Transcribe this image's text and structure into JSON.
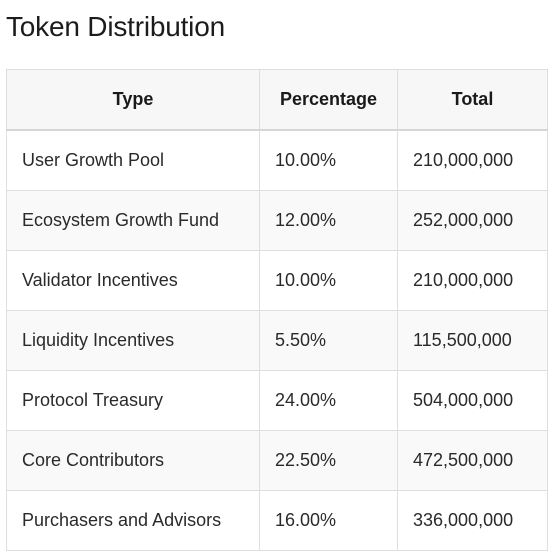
{
  "title": "Token Distribution",
  "table": {
    "headers": [
      "Type",
      "Percentage",
      "Total"
    ],
    "rows": [
      {
        "type": "User Growth Pool",
        "percentage": "10.00%",
        "total": "210,000,000"
      },
      {
        "type": "Ecosystem Growth Fund",
        "percentage": "12.00%",
        "total": "252,000,000"
      },
      {
        "type": "Validator Incentives",
        "percentage": "10.00%",
        "total": "210,000,000"
      },
      {
        "type": "Liquidity Incentives",
        "percentage": "5.50%",
        "total": "115,500,000"
      },
      {
        "type": "Protocol Treasury",
        "percentage": "24.00%",
        "total": "504,000,000"
      },
      {
        "type": "Core Contributors",
        "percentage": "22.50%",
        "total": "472,500,000"
      },
      {
        "type": "Purchasers and Advisors",
        "percentage": "16.00%",
        "total": "336,000,000"
      }
    ]
  }
}
